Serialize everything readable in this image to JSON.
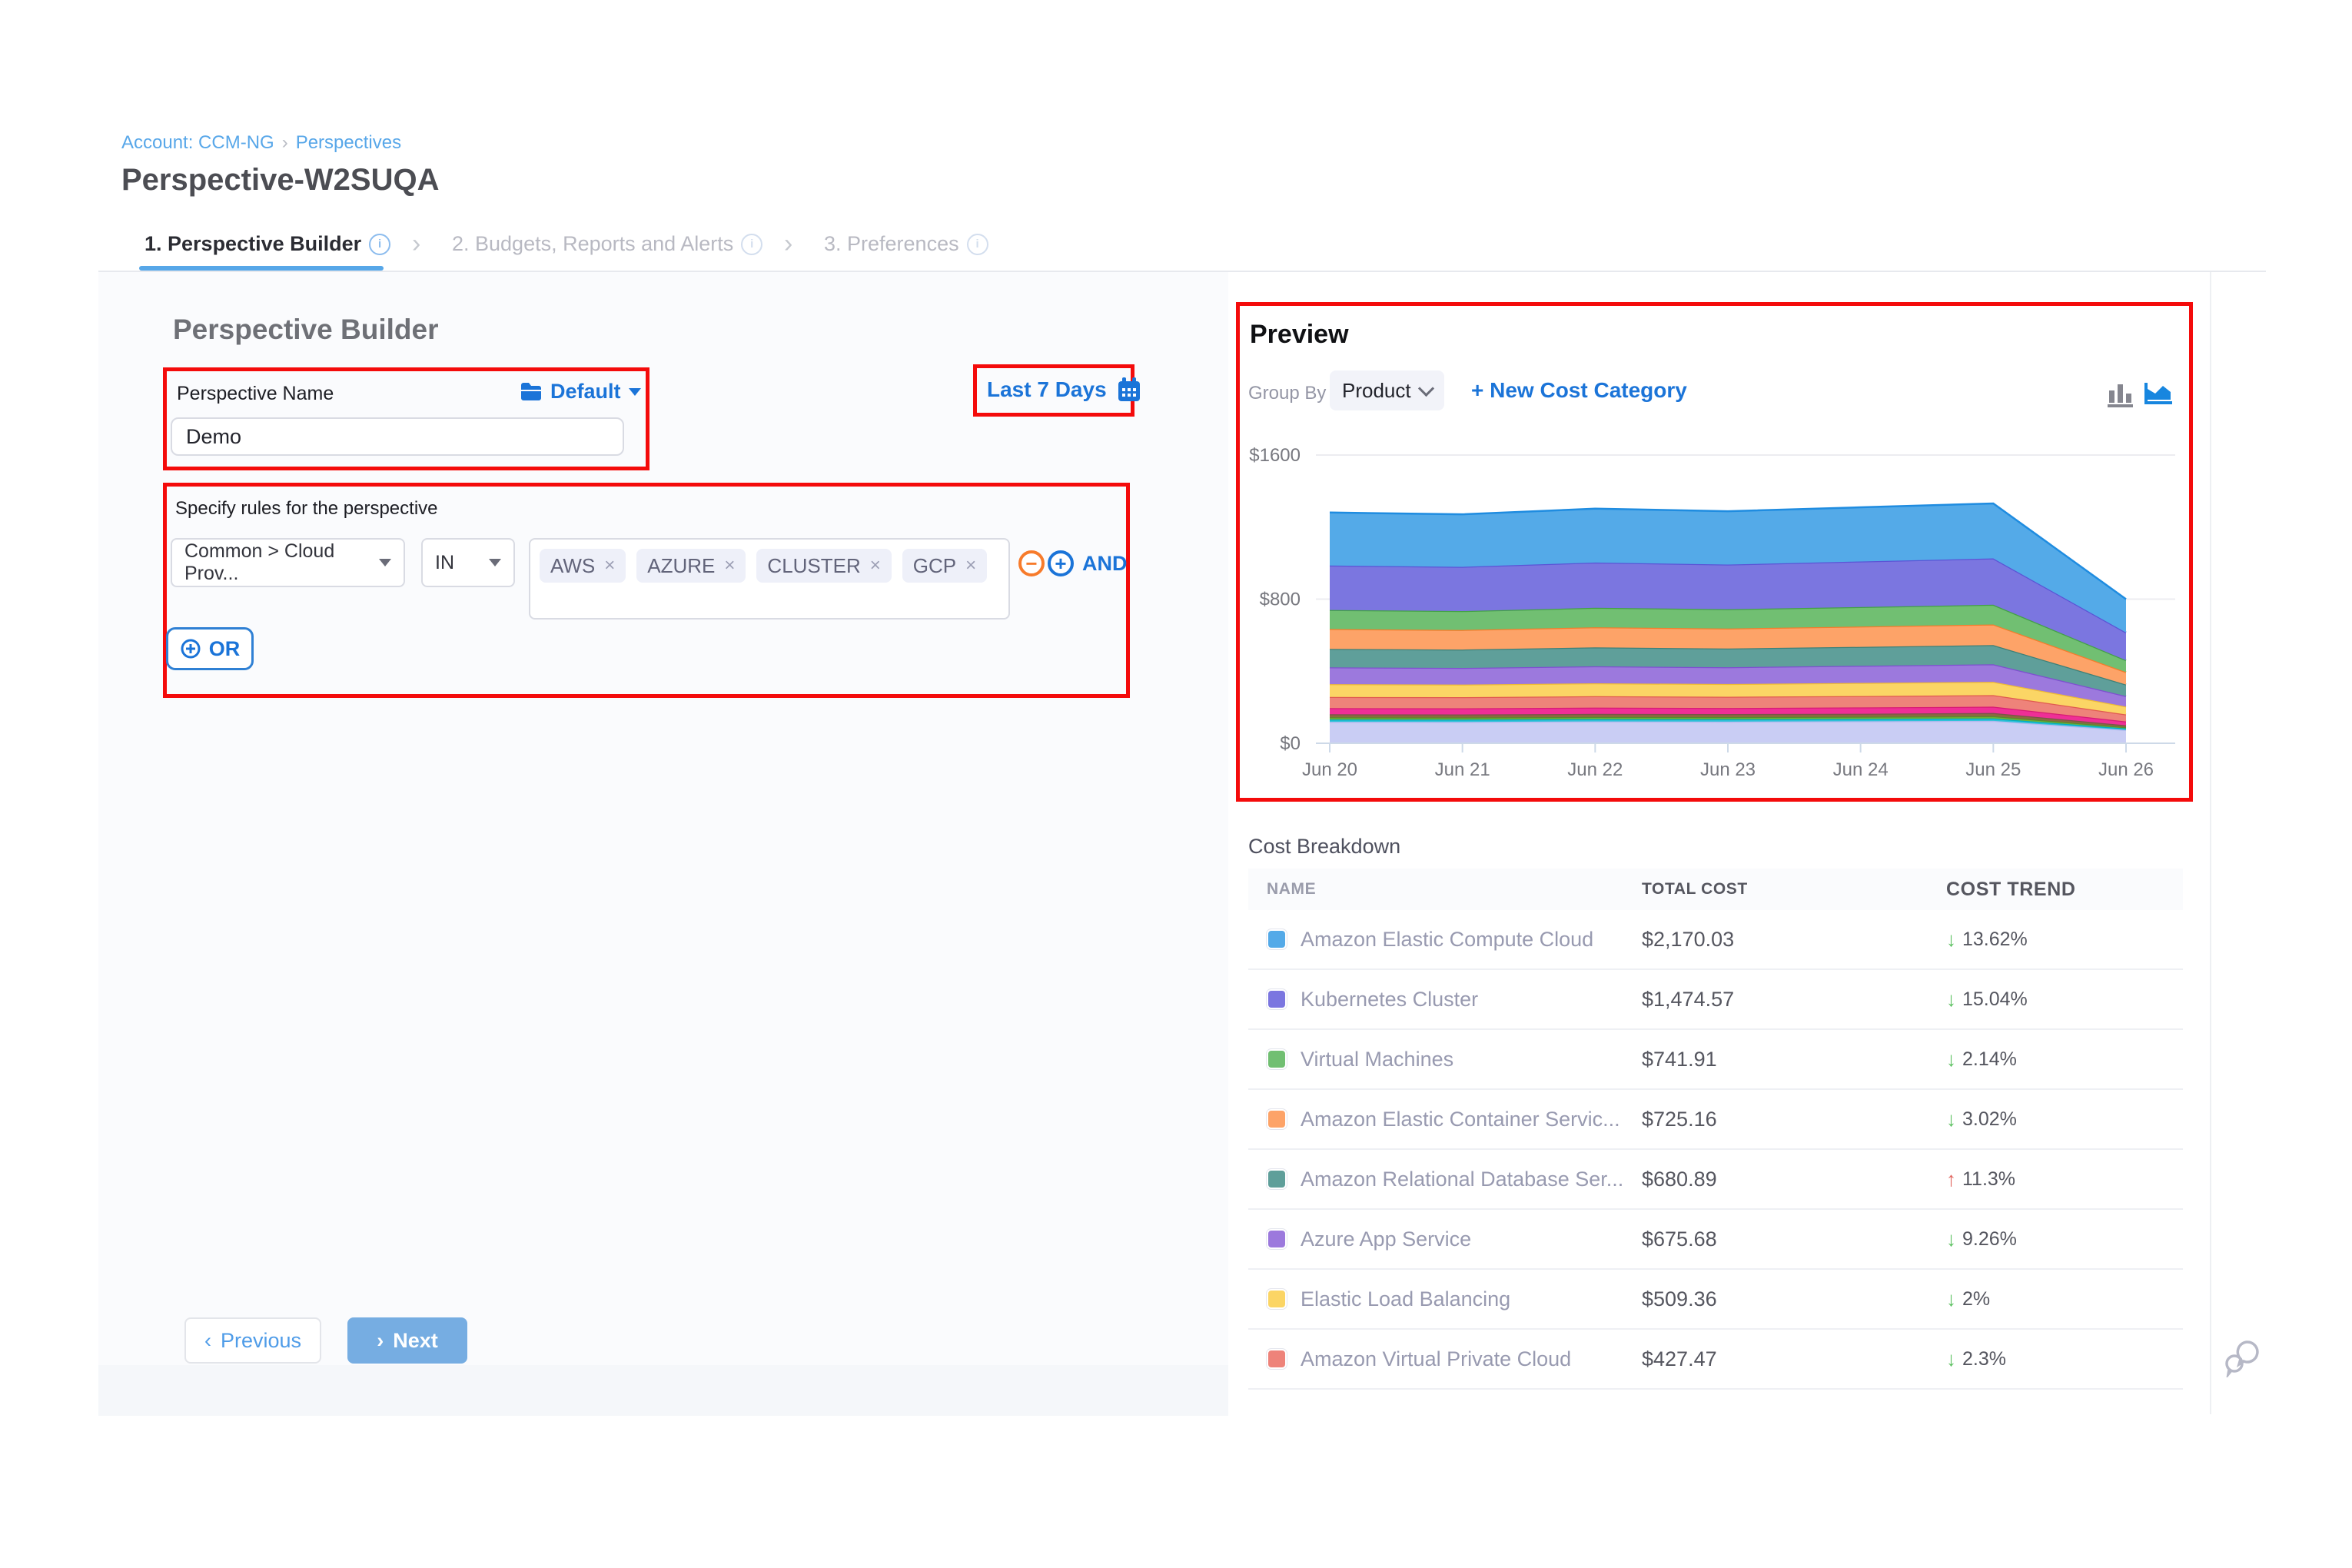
{
  "breadcrumb": {
    "account": "Account: CCM-NG",
    "separator": "›",
    "section": "Perspectives"
  },
  "page_title": "Perspective-W2SUQA",
  "tabs": [
    {
      "label": "1. Perspective Builder"
    },
    {
      "label": "2. Budgets, Reports and Alerts"
    },
    {
      "label": "3. Preferences"
    }
  ],
  "builder": {
    "heading": "Perspective Builder",
    "name_label": "Perspective Name",
    "folder_label": "Default",
    "name_value": "Demo",
    "rules_label": "Specify rules for the perspective",
    "field_dropdown": "Common > Cloud Prov...",
    "operator_dropdown": "IN",
    "values": [
      "AWS",
      "AZURE",
      "CLUSTER",
      "GCP"
    ],
    "and_label": "AND",
    "or_label": "OR"
  },
  "date_range": "Last 7 Days",
  "footer": {
    "previous_label": "Previous",
    "next_label": "Next",
    "prev_chevron": "‹",
    "next_chevron": "›"
  },
  "preview": {
    "title": "Preview",
    "group_by_label": "Group By",
    "group_by_value": "Product",
    "new_cost_category": "+ New Cost Category"
  },
  "chart_data": {
    "type": "area",
    "stacked": true,
    "x": [
      "Jun 20",
      "Jun 21",
      "Jun 22",
      "Jun 23",
      "Jun 24",
      "Jun 25",
      "Jun 26"
    ],
    "ylim": [
      0,
      1600
    ],
    "yticks": [
      {
        "value": 0,
        "label": "$0"
      },
      {
        "value": 800,
        "label": "$800"
      },
      {
        "value": 1600,
        "label": "$1600"
      }
    ],
    "grid": true,
    "legend": "none",
    "series_note": "bottom-to-top stack order; unlabeled thin bands have no visible legend text",
    "series": [
      {
        "name": "",
        "fill": "#c9cdf4",
        "line": "#b3b8ee",
        "values": [
          119,
          118,
          121,
          120,
          122,
          124,
          74
        ]
      },
      {
        "name": "",
        "fill": "#2fc2d8",
        "line": "#00acc1",
        "values": [
          13,
          13,
          13,
          13,
          13,
          14,
          8
        ]
      },
      {
        "name": "",
        "fill": "#6fb635",
        "line": "#558b2f",
        "values": [
          12,
          12,
          12,
          12,
          12,
          12,
          7
        ]
      },
      {
        "name": "",
        "fill": "#8b6a3f",
        "line": "#795548",
        "values": [
          17,
          17,
          17,
          17,
          17,
          18,
          11
        ]
      },
      {
        "name": "",
        "fill": "#ee2f96",
        "line": "#d81b74",
        "values": [
          34,
          34,
          35,
          34,
          35,
          35,
          21
        ]
      },
      {
        "name": "Amazon Virtual Private Cloud",
        "fill": "#ee837a",
        "line": "#e05a50",
        "values": [
          62,
          62,
          63,
          62,
          63,
          64,
          39
        ]
      },
      {
        "name": "Elastic Load Balancing",
        "fill": "#fbd565",
        "line": "#f0bb33",
        "values": [
          71,
          70,
          72,
          71,
          73,
          74,
          44
        ]
      },
      {
        "name": "Azure App Service",
        "fill": "#9c79dd",
        "line": "#7e4fd0",
        "values": [
          93,
          92,
          94,
          93,
          95,
          97,
          58
        ]
      },
      {
        "name": "Amazon Relational Database Ser...",
        "fill": "#5f9f9a",
        "line": "#3d8077",
        "values": [
          103,
          102,
          105,
          104,
          105,
          107,
          64
        ]
      },
      {
        "name": "Amazon Elastic Container Servic...",
        "fill": "#fda368",
        "line": "#f57c2a",
        "values": [
          110,
          109,
          112,
          111,
          113,
          114,
          69
        ]
      },
      {
        "name": "Virtual Machines",
        "fill": "#71bf72",
        "line": "#43a047",
        "values": [
          106,
          105,
          108,
          107,
          108,
          110,
          66
        ]
      },
      {
        "name": "Kubernetes Cluster",
        "fill": "#7b76e0",
        "line": "#5a54d6",
        "values": [
          247,
          245,
          251,
          248,
          253,
          257,
          154
        ]
      },
      {
        "name": "Amazon Elastic Compute Cloud",
        "fill": "#54aae8",
        "line": "#1f8ce0",
        "values": [
          294,
          292,
          299,
          296,
          301,
          305,
          185
        ]
      }
    ]
  },
  "table": {
    "heading": "Cost Breakdown",
    "columns": [
      "NAME",
      "TOTAL COST",
      "COST TREND"
    ],
    "rows": [
      {
        "name": "Amazon Elastic Compute Cloud",
        "color": "#54aae8",
        "cost": "$2,170.03",
        "trend": "13.62%",
        "direction": "down"
      },
      {
        "name": "Kubernetes Cluster",
        "color": "#7b76e0",
        "cost": "$1,474.57",
        "trend": "15.04%",
        "direction": "down"
      },
      {
        "name": "Virtual Machines",
        "color": "#71bf72",
        "cost": "$741.91",
        "trend": "2.14%",
        "direction": "down"
      },
      {
        "name": "Amazon Elastic Container Servic...",
        "color": "#fda368",
        "cost": "$725.16",
        "trend": "3.02%",
        "direction": "down"
      },
      {
        "name": "Amazon Relational Database Ser...",
        "color": "#5f9f9a",
        "cost": "$680.89",
        "trend": "11.3%",
        "direction": "up"
      },
      {
        "name": "Azure App Service",
        "color": "#9c79dd",
        "cost": "$675.68",
        "trend": "9.26%",
        "direction": "down"
      },
      {
        "name": "Elastic Load Balancing",
        "color": "#fbd565",
        "cost": "$509.36",
        "trend": "2%",
        "direction": "down"
      },
      {
        "name": "Amazon Virtual Private Cloud",
        "color": "#ee837a",
        "cost": "$427.47",
        "trend": "2.3%",
        "direction": "down"
      }
    ]
  },
  "colors": {
    "annotation_red": "#f40b0b",
    "primary_blue": "#1b74d8",
    "light_blue": "#57a7e8",
    "trend_down_green": "#5cc061",
    "trend_up_red": "#e0635c",
    "axis_line": "#cdd9e8",
    "gridline": "#ececf0"
  }
}
